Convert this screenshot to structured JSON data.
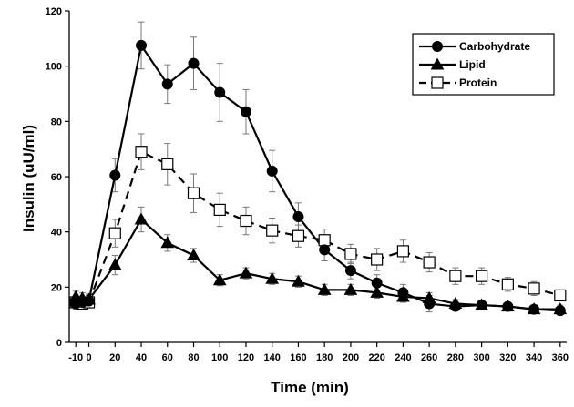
{
  "chart_data": {
    "type": "line",
    "title": "",
    "xlabel": "Time (min)",
    "ylabel": "Insulin (uU/ml)",
    "xlim": [
      -15,
      365
    ],
    "ylim": [
      0,
      120
    ],
    "x_ticks": [
      -10,
      0,
      20,
      40,
      60,
      80,
      100,
      120,
      140,
      160,
      180,
      200,
      220,
      240,
      260,
      280,
      300,
      320,
      340,
      360
    ],
    "x_tick_labels": [
      "-10",
      "0",
      "20",
      "40",
      "60",
      "80",
      "100",
      "120",
      "140",
      "160",
      "180",
      "200",
      "220",
      "240",
      "260",
      "280",
      "300",
      "320",
      "340",
      "360"
    ],
    "y_ticks": [
      0,
      20,
      40,
      60,
      80,
      100,
      120
    ],
    "y_tick_labels": [
      "0",
      "20",
      "40",
      "60",
      "80",
      "100",
      "120"
    ],
    "grid": false,
    "legend_position": "top-right",
    "x": [
      -10,
      -5,
      0,
      20,
      40,
      60,
      80,
      100,
      120,
      140,
      160,
      180,
      200,
      220,
      240,
      260,
      280,
      300,
      320,
      340,
      360
    ],
    "series": [
      {
        "name": "Carbohydrate",
        "marker": "circle",
        "line_style": "solid",
        "values": [
          14,
          14.5,
          15,
          60.5,
          107.5,
          93.5,
          101,
          90.5,
          83.5,
          62,
          45.5,
          33.5,
          26,
          21.5,
          18,
          14,
          13,
          13.5,
          13,
          12,
          11.5
        ],
        "errors": [
          2,
          2,
          2,
          6,
          8.5,
          7,
          9.5,
          10.5,
          8,
          7.5,
          5,
          4,
          3,
          3,
          3,
          3,
          1.5,
          1.5,
          1.5,
          1.5,
          1.5
        ]
      },
      {
        "name": "Lipid",
        "marker": "triangle",
        "line_style": "solid",
        "values": [
          16.5,
          16,
          15.5,
          28,
          44.5,
          36,
          31.5,
          22.5,
          25,
          23,
          22,
          19,
          19,
          18,
          16.5,
          16,
          14,
          13.5,
          13,
          12,
          12
        ],
        "errors": [
          2,
          2,
          2,
          3.5,
          4.5,
          3,
          2.5,
          2,
          2,
          2,
          2,
          2,
          2,
          2,
          2,
          2,
          1.5,
          1.5,
          1.5,
          1.5,
          1.5
        ]
      },
      {
        "name": "Protein",
        "marker": "open-square",
        "line_style": "dashed",
        "values": [
          14.5,
          14,
          14.5,
          39.5,
          69,
          64.5,
          54,
          48,
          44,
          40.5,
          38.5,
          37,
          32,
          30,
          33,
          29,
          24,
          24,
          21,
          19.5,
          17
        ],
        "errors": [
          2,
          2,
          2,
          5,
          6.5,
          7.5,
          7,
          6,
          5,
          4.5,
          4,
          4,
          3.5,
          4,
          4,
          3.5,
          3,
          3,
          2.5,
          2.5,
          2
        ]
      }
    ]
  }
}
